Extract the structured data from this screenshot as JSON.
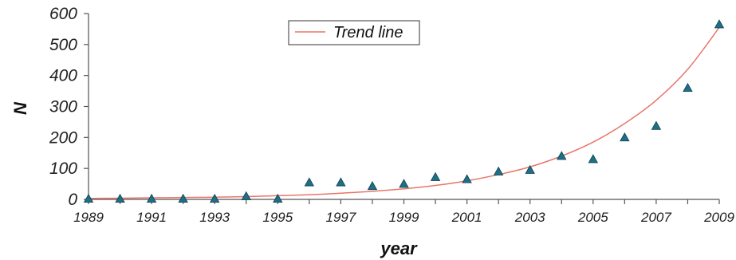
{
  "chart_data": {
    "type": "scatter",
    "xlabel": "year",
    "ylabel": "N",
    "xlim": [
      1989,
      2009
    ],
    "ylim": [
      0,
      600
    ],
    "x_ticks": [
      "1989",
      "1991",
      "1993",
      "1995",
      "1997",
      "1999",
      "2001",
      "2003",
      "2005",
      "2007",
      "2009"
    ],
    "y_ticks": [
      "0",
      "100",
      "200",
      "300",
      "400",
      "500",
      "600"
    ],
    "legend_position": "top-center",
    "grid": false,
    "series": [
      {
        "kind": "points",
        "marker": "triangle",
        "color": "#1f6f86",
        "x": [
          1989,
          1990,
          1991,
          1992,
          1993,
          1994,
          1995,
          1996,
          1997,
          1998,
          1999,
          2000,
          2001,
          2002,
          2003,
          2004,
          2005,
          2006,
          2007,
          2008,
          2009
        ],
        "y": [
          2,
          2,
          2,
          2,
          2,
          10,
          2,
          55,
          55,
          43,
          50,
          72,
          65,
          90,
          95,
          140,
          130,
          200,
          237,
          360,
          565
        ]
      },
      {
        "kind": "line",
        "name": "Trend line",
        "color": "#e8766a",
        "x": [
          1989,
          1990,
          1991,
          1992,
          1993,
          1994,
          1995,
          1996,
          1997,
          1998,
          1999,
          2000,
          2001,
          2002,
          2003,
          2004,
          2005,
          2006,
          2007,
          2008,
          2009
        ],
        "y": [
          3,
          4,
          5,
          6,
          7,
          9,
          12,
          15,
          20,
          26,
          34,
          45,
          60,
          80,
          105,
          140,
          185,
          245,
          320,
          420,
          555
        ]
      }
    ]
  }
}
